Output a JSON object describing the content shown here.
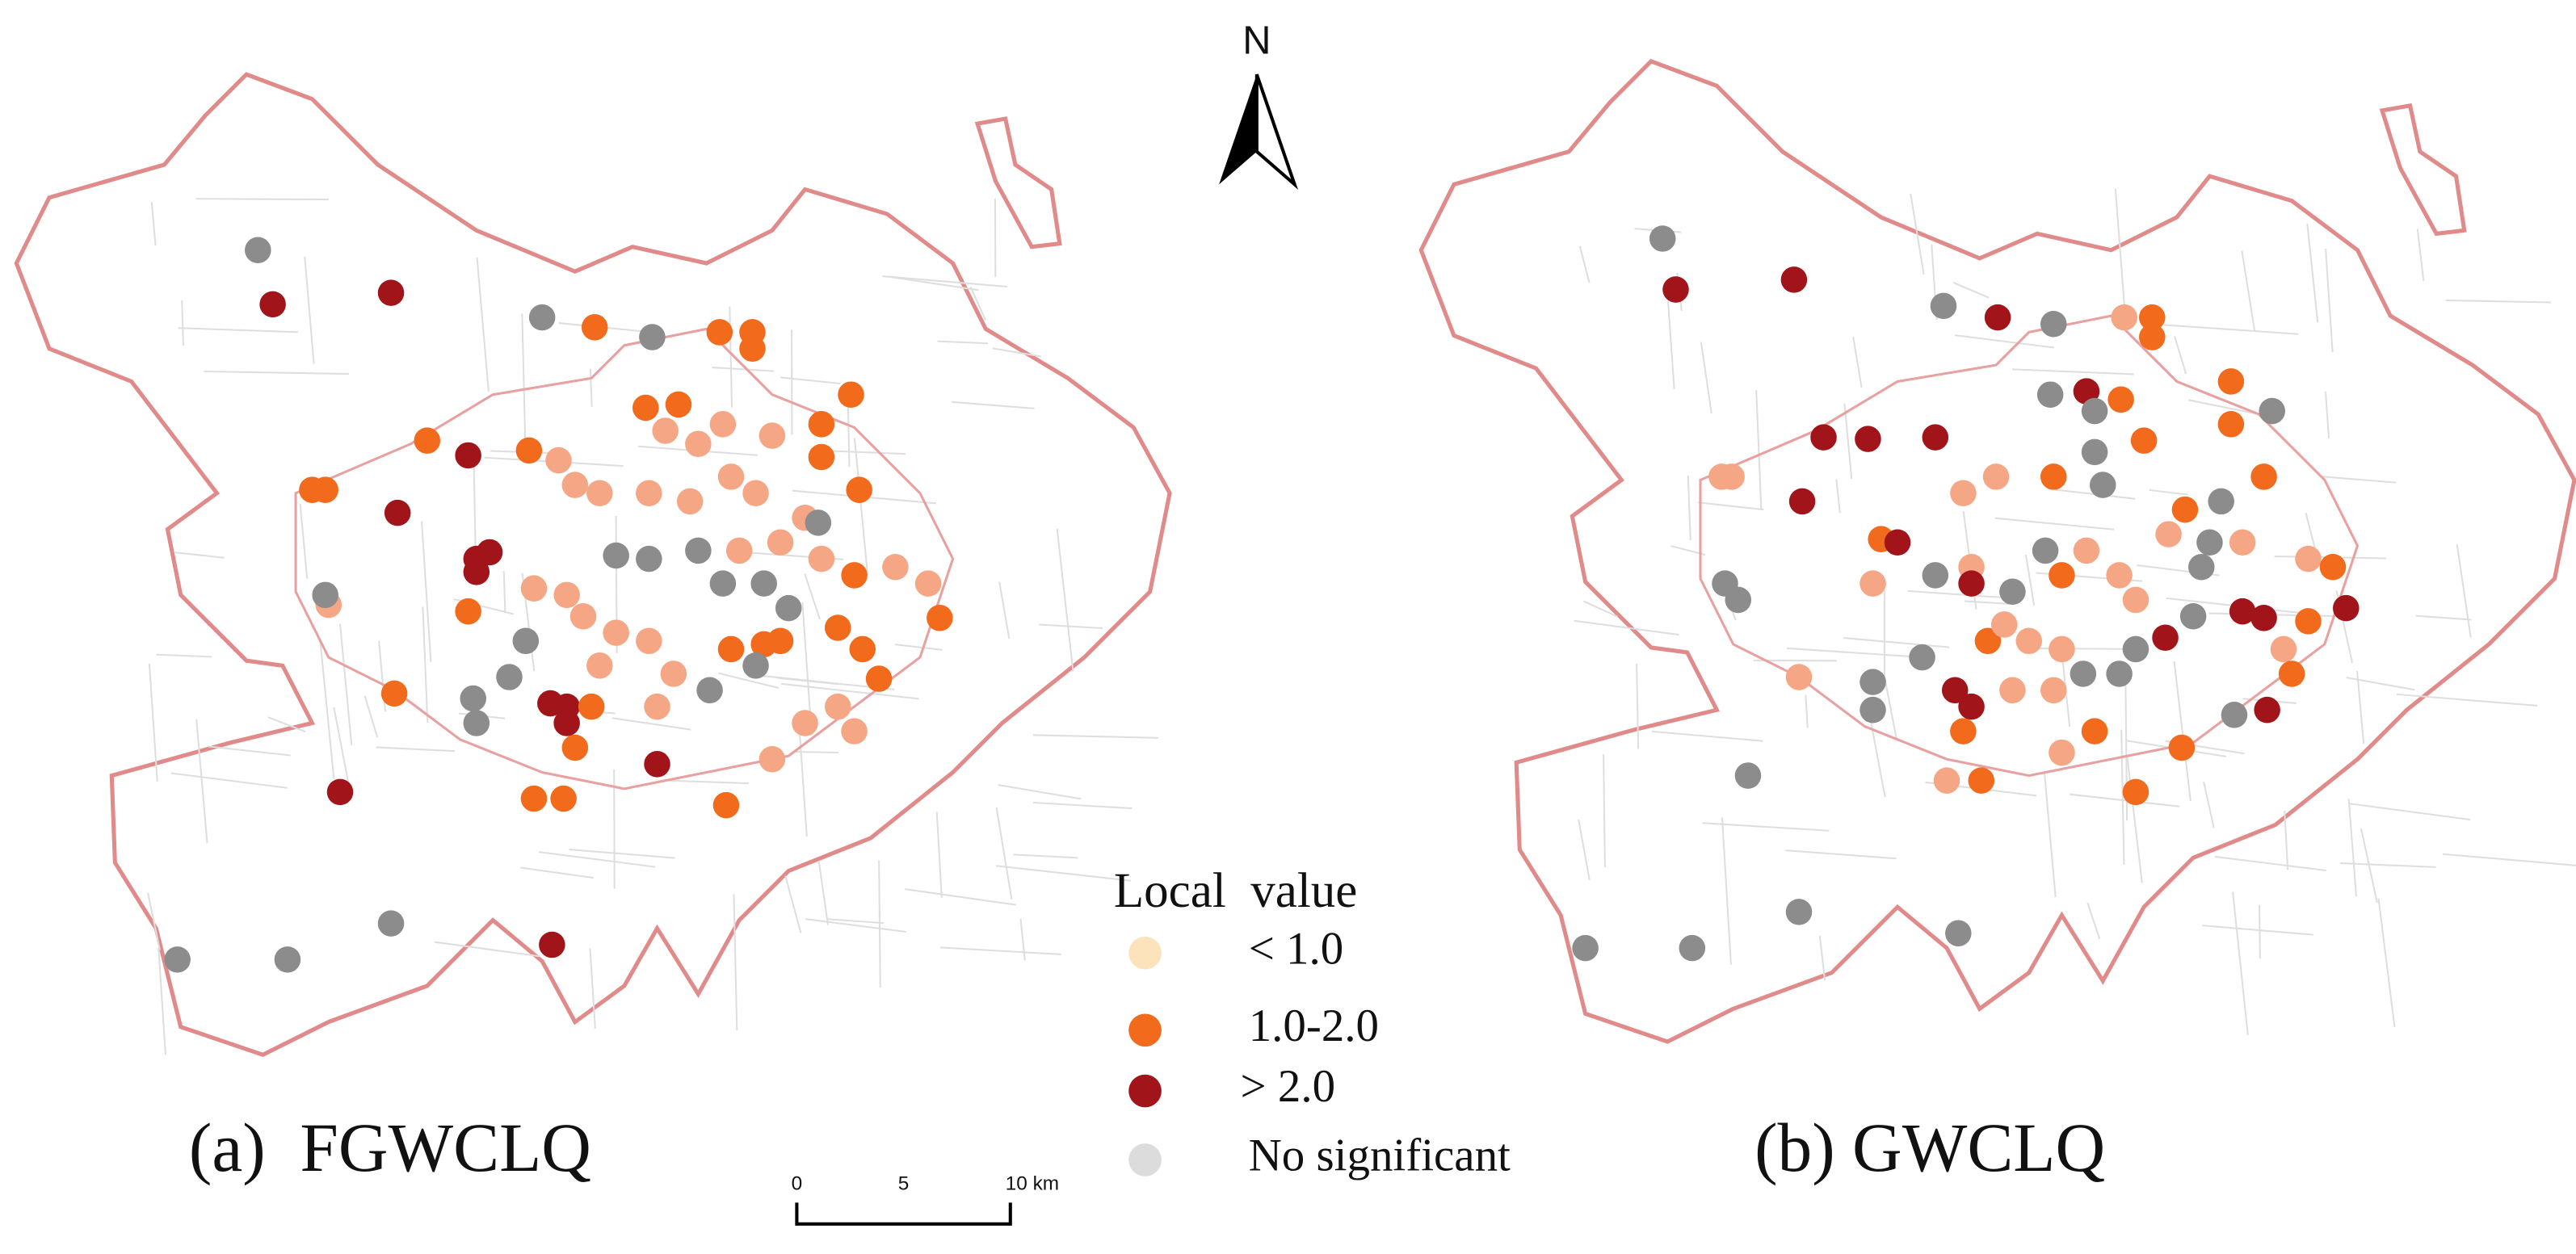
{
  "north": "N",
  "panels": [
    {
      "label": "(a)  FGWCLQ"
    },
    {
      "label": "(b) GWCLQ"
    }
  ],
  "legend": {
    "title": "Local  value",
    "items": [
      {
        "label": "< 1.0",
        "color": "#fde3bb"
      },
      {
        "label": "1.0-2.0",
        "color": "#f26a1b"
      },
      {
        "label": "> 2.0",
        "color": "#a11419"
      },
      {
        "label": "No significant",
        "color": "#dcdcdc"
      }
    ]
  },
  "scale_bar": {
    "labels": [
      "0",
      "5",
      "10 km"
    ]
  }
}
